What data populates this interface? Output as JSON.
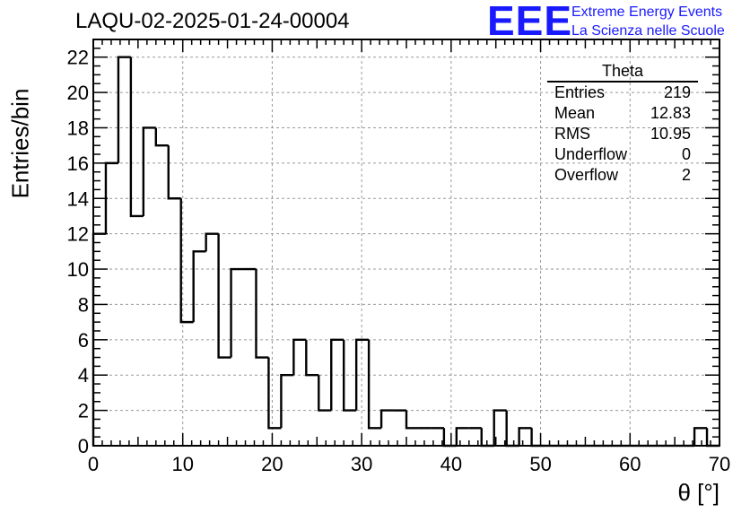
{
  "title": "LAQU-02-2025-01-24-00004",
  "logo": {
    "mark": "EEE",
    "line1": "Extreme Energy Events",
    "line2": "La Scienza nelle Scuole",
    "color": "#1a1aff"
  },
  "stats_box": {
    "title": "Theta",
    "rows": [
      {
        "label": "Entries",
        "value": "219"
      },
      {
        "label": "Mean",
        "value": "12.83"
      },
      {
        "label": "RMS",
        "value": "10.95"
      },
      {
        "label": "Underflow",
        "value": "0"
      },
      {
        "label": "Overflow",
        "value": "2"
      }
    ]
  },
  "chart_data": {
    "type": "bar",
    "histogram": true,
    "title": "LAQU-02-2025-01-24-00004",
    "xlabel": "θ [°]",
    "ylabel": "Entries/bin",
    "xlim": [
      0,
      70
    ],
    "ylim": [
      0,
      23
    ],
    "bin_width": 1.4,
    "x_ticks": [
      0,
      10,
      20,
      30,
      40,
      50,
      60,
      70
    ],
    "y_ticks": [
      0,
      2,
      4,
      6,
      8,
      10,
      12,
      14,
      16,
      18,
      20,
      22
    ],
    "grid": true,
    "values": [
      12,
      16,
      22,
      13,
      18,
      17,
      14,
      7,
      11,
      12,
      5,
      10,
      10,
      5,
      1,
      4,
      6,
      4,
      2,
      6,
      2,
      6,
      1,
      2,
      2,
      1,
      1,
      1,
      0,
      1,
      1,
      0,
      2,
      0,
      1,
      0,
      0,
      0,
      0,
      0,
      0,
      0,
      0,
      0,
      0,
      0,
      0,
      0,
      1,
      0
    ]
  }
}
